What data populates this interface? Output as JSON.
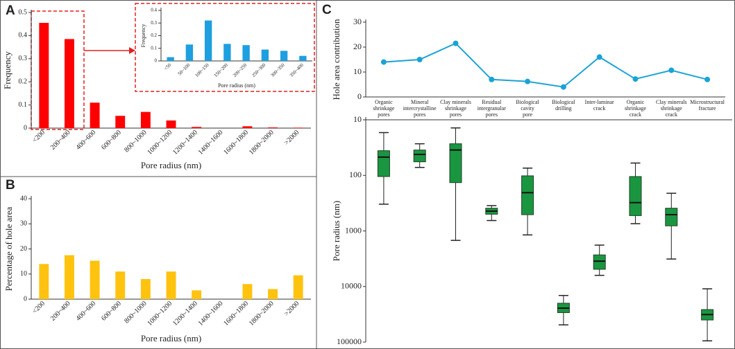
{
  "chart_data": [
    {
      "type": "bar",
      "panel": "A",
      "ylabel": "Frequency",
      "xlabel": "Pore radius (nm)",
      "color": "#ff0000",
      "categories": [
        "<200",
        "200~400",
        "400~600",
        "600~800",
        "800~1000",
        "1000~1200",
        "1200~1400",
        "1400~1600",
        "1600~1800",
        "1800~2000",
        ">2000"
      ],
      "values": [
        0.455,
        0.385,
        0.11,
        0.053,
        0.07,
        0.033,
        0.005,
        0,
        0.008,
        0.003,
        0.002
      ],
      "ylim": [
        0,
        0.5
      ],
      "yticks": [
        0,
        0.1,
        0.2,
        0.3,
        0.4,
        0.5
      ]
    },
    {
      "type": "bar",
      "ylabel": "Frequency",
      "xlabel": "Pore radius (nm)",
      "color": "#1e9fe0",
      "categories": [
        "<50",
        "50~100",
        "100~150",
        "150~200",
        "200~250",
        "250~300",
        "300~350",
        "350~400"
      ],
      "values": [
        0.03,
        0.13,
        0.32,
        0.135,
        0.125,
        0.09,
        0.08,
        0.04
      ],
      "ylim": [
        0,
        0.4
      ],
      "yticks": [
        0,
        0.1,
        0.2,
        0.3,
        0.4
      ]
    },
    {
      "type": "bar",
      "panel": "B",
      "ylabel": "Percentage of hole area",
      "xlabel": "Pore radius (nm)",
      "color": "#ffc20e",
      "categories": [
        "<200",
        "200~400",
        "400~600",
        "600~800",
        "800~1000",
        "1000~1200",
        "1200~1400",
        "1400~1600",
        "1600~1800",
        "1800~2000",
        ">2000"
      ],
      "values": [
        14,
        17.5,
        15.3,
        11,
        8,
        11,
        3.5,
        0,
        6,
        4,
        9.5
      ],
      "ylim": [
        0,
        40
      ],
      "yticks": [
        0,
        10,
        20,
        30,
        40
      ]
    },
    {
      "type": "line",
      "panel": "C",
      "ylabel": "Hole area contribution",
      "color": "#1aa3d6",
      "categories": [
        [
          "Organic",
          "shrinkage",
          "pores"
        ],
        [
          "Mineral",
          "intercrystalline",
          "pores"
        ],
        [
          "Clay minerals",
          "shrinkage",
          "pores"
        ],
        [
          "Residual",
          "intergranular",
          "pores"
        ],
        [
          "Biological",
          "cavity",
          "pore"
        ],
        [
          "Biological",
          "drilling"
        ],
        [
          "Inter-laminar",
          "crack"
        ],
        [
          "Organic",
          "shrinkage",
          "crack"
        ],
        [
          "Clay minerals",
          "shrinkage",
          "crack"
        ],
        [
          "Microstructural",
          "fracture"
        ]
      ],
      "values": [
        14,
        15,
        21.5,
        7,
        6.2,
        4,
        16,
        7.2,
        10.7,
        7
      ],
      "ylim": [
        0,
        30
      ],
      "yticks": [
        0,
        10,
        20,
        30
      ]
    },
    {
      "type": "box",
      "ylabel": "Pore radius (nm)",
      "color": "#1a9641",
      "log_scale": true,
      "inverted": true,
      "boxes": [
        {
          "whislo": 17,
          "q1": 36,
          "med": 47,
          "q3": 105,
          "whishi": 330
        },
        {
          "whislo": 27,
          "q1": 35,
          "med": 42,
          "q3": 57,
          "whishi": 72
        },
        {
          "whislo": 14,
          "q1": 27,
          "med": 35,
          "q3": 135,
          "whishi": 1480
        },
        {
          "whislo": 350,
          "q1": 390,
          "med": 440,
          "q3": 500,
          "whishi": 650
        },
        {
          "whislo": 74,
          "q1": 102,
          "med": 205,
          "q3": 510,
          "whishi": 1180
        },
        {
          "whislo": 14500,
          "q1": 20000,
          "med": 24500,
          "q3": 29500,
          "whishi": 49000
        },
        {
          "whislo": 1800,
          "q1": 2700,
          "med": 3500,
          "q3": 4900,
          "whishi": 6300
        },
        {
          "whislo": 60,
          "q1": 105,
          "med": 310,
          "q3": 530,
          "whishi": 740
        },
        {
          "whislo": 210,
          "q1": 390,
          "med": 510,
          "q3": 810,
          "whishi": 3200
        },
        {
          "whislo": 11000,
          "q1": 26000,
          "med": 32000,
          "q3": 40000,
          "whishi": 95000
        }
      ],
      "ylim": [
        10,
        100000
      ],
      "yticks": [
        10,
        100,
        1000,
        10000,
        100000
      ]
    }
  ]
}
